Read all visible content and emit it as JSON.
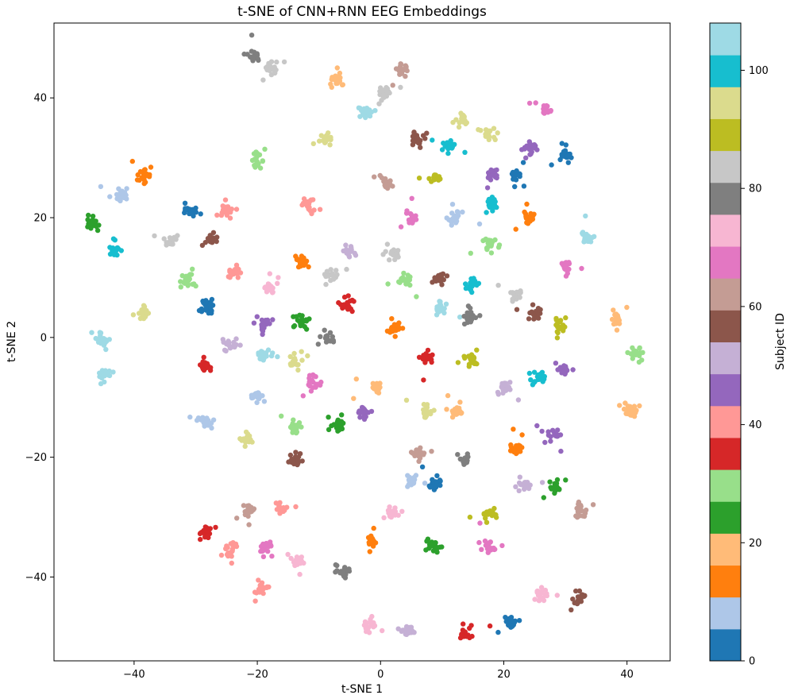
{
  "chart_data": {
    "type": "scatter",
    "title": "t-SNE of CNN+RNN EEG Embeddings",
    "xlabel": "t-SNE 1",
    "ylabel": "t-SNE 2",
    "xlim": [
      -53,
      47
    ],
    "ylim": [
      -54,
      52.5
    ],
    "xticks": [
      -40,
      -20,
      0,
      20,
      40
    ],
    "yticks": [
      -40,
      -20,
      0,
      20,
      40
    ],
    "grid": false,
    "colorbar": {
      "label": "Subject ID",
      "range": [
        0,
        108
      ],
      "ticks": [
        0,
        20,
        40,
        60,
        80,
        100
      ],
      "colormap": "tab20",
      "colors": [
        "#1f77b4",
        "#aec7e8",
        "#ff7f0e",
        "#ffbb78",
        "#2ca02c",
        "#98df8a",
        "#d62728",
        "#ff9896",
        "#9467bd",
        "#c5b0d5",
        "#8c564b",
        "#c49c94",
        "#e377c2",
        "#f7b6d2",
        "#7f7f7f",
        "#c7c7c7",
        "#bcbd22",
        "#dbdb8d",
        "#17becf",
        "#9edae5"
      ]
    },
    "clusters": [
      {
        "x": -20.5,
        "y": 47.0,
        "color_index": 14
      },
      {
        "x": -17.5,
        "y": 45.0,
        "color_index": 15
      },
      {
        "x": -7.0,
        "y": 43.0,
        "color_index": 3
      },
      {
        "x": 0.5,
        "y": 41.0,
        "color_index": 15
      },
      {
        "x": 3.5,
        "y": 45.0,
        "color_index": 11
      },
      {
        "x": -2.5,
        "y": 37.5,
        "color_index": 19
      },
      {
        "x": 13.0,
        "y": 36.5,
        "color_index": 17
      },
      {
        "x": 27.0,
        "y": 38.0,
        "color_index": 12
      },
      {
        "x": -9.0,
        "y": 33.0,
        "color_index": 17
      },
      {
        "x": 6.0,
        "y": 33.0,
        "color_index": 10
      },
      {
        "x": 11.0,
        "y": 32.0,
        "color_index": 18
      },
      {
        "x": 17.5,
        "y": 34.0,
        "color_index": 17
      },
      {
        "x": 24.5,
        "y": 31.5,
        "color_index": 8
      },
      {
        "x": 30.0,
        "y": 30.5,
        "color_index": 0
      },
      {
        "x": -20.0,
        "y": 29.5,
        "color_index": 5
      },
      {
        "x": -38.5,
        "y": 27.0,
        "color_index": 2
      },
      {
        "x": 1.0,
        "y": 26.0,
        "color_index": 11
      },
      {
        "x": 9.0,
        "y": 26.5,
        "color_index": 16
      },
      {
        "x": 22.0,
        "y": 27.0,
        "color_index": 0
      },
      {
        "x": 18.0,
        "y": 27.5,
        "color_index": 8
      },
      {
        "x": -42.0,
        "y": 24.0,
        "color_index": 1
      },
      {
        "x": 18.0,
        "y": 22.5,
        "color_index": 18
      },
      {
        "x": -30.5,
        "y": 21.0,
        "color_index": 0
      },
      {
        "x": -25.0,
        "y": 21.0,
        "color_index": 7
      },
      {
        "x": -11.5,
        "y": 22.0,
        "color_index": 7
      },
      {
        "x": 5.0,
        "y": 20.0,
        "color_index": 12
      },
      {
        "x": 12.0,
        "y": 20.0,
        "color_index": 1
      },
      {
        "x": 24.0,
        "y": 20.0,
        "color_index": 2
      },
      {
        "x": -47.0,
        "y": 19.0,
        "color_index": 4
      },
      {
        "x": -34.0,
        "y": 16.5,
        "color_index": 15
      },
      {
        "x": -27.5,
        "y": 16.5,
        "color_index": 10
      },
      {
        "x": -43.0,
        "y": 14.5,
        "color_index": 18
      },
      {
        "x": 33.5,
        "y": 16.5,
        "color_index": 19
      },
      {
        "x": -5.0,
        "y": 14.5,
        "color_index": 9
      },
      {
        "x": 2.0,
        "y": 14.0,
        "color_index": 15
      },
      {
        "x": 18.0,
        "y": 15.5,
        "color_index": 5
      },
      {
        "x": -13.0,
        "y": 12.5,
        "color_index": 2
      },
      {
        "x": 30.0,
        "y": 12.0,
        "color_index": 12
      },
      {
        "x": -24.0,
        "y": 11.0,
        "color_index": 7
      },
      {
        "x": -31.5,
        "y": 9.5,
        "color_index": 5
      },
      {
        "x": -8.0,
        "y": 10.5,
        "color_index": 15
      },
      {
        "x": 4.0,
        "y": 9.5,
        "color_index": 5
      },
      {
        "x": 9.5,
        "y": 10.0,
        "color_index": 10
      },
      {
        "x": 15.0,
        "y": 9.0,
        "color_index": 18
      },
      {
        "x": -18.0,
        "y": 8.5,
        "color_index": 13
      },
      {
        "x": 22.0,
        "y": 7.0,
        "color_index": 15
      },
      {
        "x": -5.5,
        "y": 5.5,
        "color_index": 6
      },
      {
        "x": -28.0,
        "y": 5.0,
        "color_index": 0
      },
      {
        "x": 9.5,
        "y": 5.0,
        "color_index": 19
      },
      {
        "x": -38.5,
        "y": 4.0,
        "color_index": 17
      },
      {
        "x": 14.5,
        "y": 3.5,
        "color_index": 14
      },
      {
        "x": 25.0,
        "y": 4.0,
        "color_index": 10
      },
      {
        "x": 38.5,
        "y": 3.0,
        "color_index": 3
      },
      {
        "x": -18.5,
        "y": 2.5,
        "color_index": 8
      },
      {
        "x": -13.0,
        "y": 2.5,
        "color_index": 4
      },
      {
        "x": 29.0,
        "y": 2.0,
        "color_index": 16
      },
      {
        "x": 2.5,
        "y": 1.5,
        "color_index": 2
      },
      {
        "x": -8.5,
        "y": 0.0,
        "color_index": 14
      },
      {
        "x": -45.5,
        "y": -0.5,
        "color_index": 19
      },
      {
        "x": -24.5,
        "y": -1.0,
        "color_index": 9
      },
      {
        "x": -19.0,
        "y": -3.0,
        "color_index": 19
      },
      {
        "x": -14.0,
        "y": -4.0,
        "color_index": 17
      },
      {
        "x": 7.5,
        "y": -3.5,
        "color_index": 6
      },
      {
        "x": 15.0,
        "y": -3.5,
        "color_index": 16
      },
      {
        "x": 41.5,
        "y": -2.5,
        "color_index": 5
      },
      {
        "x": -28.5,
        "y": -4.5,
        "color_index": 6
      },
      {
        "x": -45.0,
        "y": -6.0,
        "color_index": 19
      },
      {
        "x": 30.0,
        "y": -5.5,
        "color_index": 8
      },
      {
        "x": 25.5,
        "y": -6.5,
        "color_index": 18
      },
      {
        "x": -11.0,
        "y": -7.5,
        "color_index": 12
      },
      {
        "x": -0.5,
        "y": -8.5,
        "color_index": 3
      },
      {
        "x": 20.0,
        "y": -8.5,
        "color_index": 9
      },
      {
        "x": -20.0,
        "y": -10.0,
        "color_index": 1
      },
      {
        "x": 7.5,
        "y": -12.5,
        "color_index": 17
      },
      {
        "x": 12.0,
        "y": -12.0,
        "color_index": 3
      },
      {
        "x": -3.0,
        "y": -12.5,
        "color_index": 8
      },
      {
        "x": 40.5,
        "y": -12.0,
        "color_index": 3
      },
      {
        "x": -28.5,
        "y": -14.0,
        "color_index": 1
      },
      {
        "x": -7.0,
        "y": -14.5,
        "color_index": 4
      },
      {
        "x": -14.0,
        "y": -15.0,
        "color_index": 5
      },
      {
        "x": -21.5,
        "y": -17.0,
        "color_index": 17
      },
      {
        "x": 28.0,
        "y": -16.5,
        "color_index": 8
      },
      {
        "x": 22.0,
        "y": -18.5,
        "color_index": 2
      },
      {
        "x": 6.0,
        "y": -19.5,
        "color_index": 11
      },
      {
        "x": -13.5,
        "y": -20.5,
        "color_index": 10
      },
      {
        "x": 13.5,
        "y": -20.5,
        "color_index": 14
      },
      {
        "x": 5.0,
        "y": -24.0,
        "color_index": 1
      },
      {
        "x": 9.0,
        "y": -24.5,
        "color_index": 0
      },
      {
        "x": 23.5,
        "y": -24.5,
        "color_index": 9
      },
      {
        "x": 28.5,
        "y": -25.0,
        "color_index": 4
      },
      {
        "x": -21.5,
        "y": -29.0,
        "color_index": 11
      },
      {
        "x": -16.0,
        "y": -28.5,
        "color_index": 7
      },
      {
        "x": 2.0,
        "y": -29.5,
        "color_index": 13
      },
      {
        "x": 17.5,
        "y": -29.5,
        "color_index": 16
      },
      {
        "x": 32.5,
        "y": -29.0,
        "color_index": 11
      },
      {
        "x": -28.5,
        "y": -32.5,
        "color_index": 6
      },
      {
        "x": -1.5,
        "y": -34.0,
        "color_index": 2
      },
      {
        "x": 8.5,
        "y": -35.0,
        "color_index": 4
      },
      {
        "x": 17.5,
        "y": -35.0,
        "color_index": 12
      },
      {
        "x": -24.5,
        "y": -35.5,
        "color_index": 7
      },
      {
        "x": -18.5,
        "y": -35.0,
        "color_index": 12
      },
      {
        "x": -13.5,
        "y": -37.5,
        "color_index": 13
      },
      {
        "x": -6.0,
        "y": -39.0,
        "color_index": 14
      },
      {
        "x": -19.5,
        "y": -42.0,
        "color_index": 7
      },
      {
        "x": 26.0,
        "y": -43.0,
        "color_index": 13
      },
      {
        "x": 32.0,
        "y": -43.5,
        "color_index": 10
      },
      {
        "x": -1.5,
        "y": -48.0,
        "color_index": 13
      },
      {
        "x": 21.0,
        "y": -47.5,
        "color_index": 0
      },
      {
        "x": 4.5,
        "y": -49.0,
        "color_index": 9
      },
      {
        "x": 13.5,
        "y": -49.5,
        "color_index": 6
      }
    ]
  }
}
